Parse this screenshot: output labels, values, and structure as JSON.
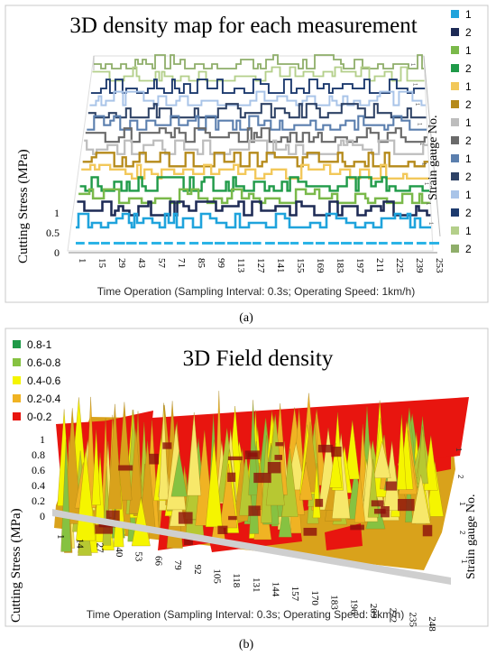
{
  "panel_a": {
    "title": "3D density map for each measurement",
    "caption": "(a)",
    "ylabel": "Cutting Stress (MPa)",
    "xlabel": "Time Operation (Sampling Interval: 0.3s; Operating Speed:  1km/h)",
    "zlabel": "Strain gauge No."
  },
  "panel_b": {
    "title": "3D Field density",
    "caption": "(b)",
    "ylabel": "Cutting Stress (MPa)",
    "xlabel": "Time Operation (Sampling Interval: 0.3s; Operating Speed: 1km/h)",
    "zlabel": "Strain gauge No."
  },
  "chart_data": [
    {
      "type": "line",
      "title": "3D density map for each measurement",
      "xlabel": "Time Operation (Sampling Interval: 0.3s; Operating Speed:  1km/h)",
      "ylabel": "Cutting Stress (MPa)",
      "zlabel": "Strain gauge No.",
      "y_ticks": [
        "0",
        "0.5",
        "1"
      ],
      "x_ticks": [
        "1",
        "15",
        "29",
        "43",
        "57",
        "71",
        "85",
        "99",
        "113",
        "127",
        "141",
        "155",
        "169",
        "183",
        "197",
        "211",
        "225",
        "239",
        "253"
      ],
      "legend_position": "right",
      "series": [
        {
          "name": "1",
          "color": "#1fa3dc"
        },
        {
          "name": "2",
          "color": "#1d2a55"
        },
        {
          "name": "1",
          "color": "#7ab94a"
        },
        {
          "name": "2",
          "color": "#1f9a48"
        },
        {
          "name": "1",
          "color": "#f2c85a"
        },
        {
          "name": "2",
          "color": "#b58a1a"
        },
        {
          "name": "1",
          "color": "#bdbdbd"
        },
        {
          "name": "2",
          "color": "#6a6a6a"
        },
        {
          "name": "1",
          "color": "#5b7fae"
        },
        {
          "name": "2",
          "color": "#2e4266"
        },
        {
          "name": "1",
          "color": "#a9c4e8"
        },
        {
          "name": "2",
          "color": "#1d3a6e"
        },
        {
          "name": "1",
          "color": "#b4cf8a"
        },
        {
          "name": "2",
          "color": "#8fae6a"
        }
      ]
    },
    {
      "type": "heatmap",
      "title": "3D Field density",
      "xlabel": "Time Operation (Sampling Interval: 0.3s; Operating Speed: 1km/h)",
      "ylabel": "Cutting Stress (MPa)",
      "zlabel": "Strain gauge No.",
      "y_ticks": [
        "0",
        "0.2",
        "0.4",
        "0.6",
        "0.8",
        "1"
      ],
      "x_ticks": [
        "1",
        "14",
        "27",
        "40",
        "53",
        "66",
        "79",
        "92",
        "105",
        "118",
        "131",
        "144",
        "157",
        "170",
        "183",
        "196",
        "209",
        "222",
        "235",
        "248"
      ],
      "z_ticks": [
        "1",
        "2",
        "1",
        "2",
        "1"
      ],
      "legend_position": "top-left",
      "legend": [
        {
          "label": "0.8-1",
          "color": "#1f9a48"
        },
        {
          "label": "0.6-0.8",
          "color": "#86c241"
        },
        {
          "label": "0.4-0.6",
          "color": "#f5f500"
        },
        {
          "label": "0.2-0.4",
          "color": "#f0b323"
        },
        {
          "label": "0-0.2",
          "color": "#e8150f"
        }
      ]
    }
  ]
}
